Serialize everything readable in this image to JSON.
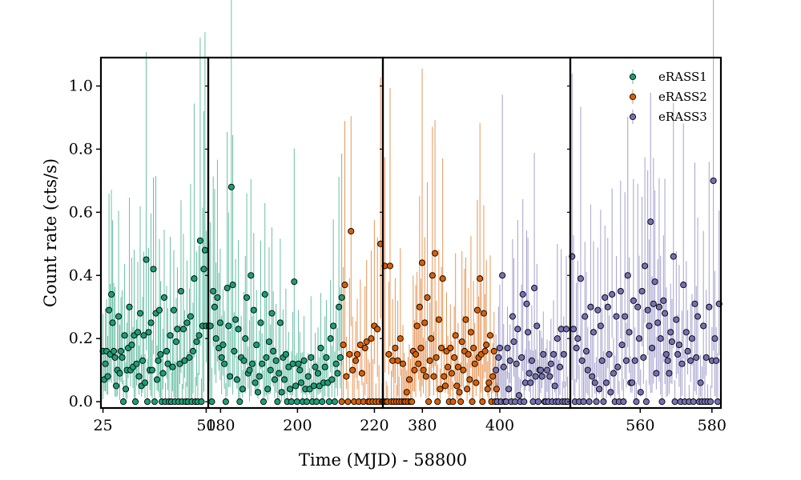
{
  "chart_data": {
    "type": "scatter",
    "xlabel": "Time (MJD) - 58800",
    "ylabel": "Count rate (cts/s)",
    "ylim": [
      -0.02,
      1.09
    ],
    "yticks": [
      "0.0",
      "0.2",
      "0.4",
      "0.6",
      "0.8",
      "1.0"
    ],
    "grid": false,
    "legend_position": "top-right",
    "series": [
      {
        "name": "eRASS1",
        "color": "#1b9e77",
        "marker": "circle"
      },
      {
        "name": "eRASS2",
        "color": "#d95f02",
        "marker": "circle"
      },
      {
        "name": "eRASS3",
        "color": "#7570b3",
        "marker": "circle"
      }
    ],
    "panels": [
      {
        "xlim": [
          24.5,
          50.5
        ],
        "xticks": [
          {
            "value": 25,
            "label": "25"
          },
          {
            "value": 50,
            "label": "50"
          }
        ],
        "segments": [
          {
            "series": 0,
            "x_start": 25.0,
            "x_end": 50.0,
            "y": [
              0.16,
              0.07,
              0.12,
              0.16,
              0.08,
              0.29,
              0.15,
              0.34,
              0.25,
              0.16,
              0.14,
              0.05,
              0.1,
              0.27,
              0.09,
              0.16,
              0.14,
              0.0,
              0.21,
              0.04,
              0.1,
              0.17,
              0.3,
              0.1,
              0.18,
              0.11,
              0.21,
              0.0,
              0.12,
              0.22,
              0.08,
              0.28,
              0.05,
              0.13,
              0.21,
              0.06,
              0.45,
              0.0,
              0.22,
              0.1,
              0.25,
              0.1,
              0.42,
              0.0,
              0.28,
              0.07,
              0.13,
              0.29,
              0.15,
              0.0,
              0.09,
              0.33,
              0.0,
              0.16,
              0.12,
              0.0,
              0.21,
              0.0,
              0.11,
              0.29,
              0.0,
              0.19,
              0.23,
              0.0,
              0.12,
              0.35,
              0.0,
              0.23,
              0.13,
              0.0,
              0.25,
              0.0,
              0.14,
              0.27,
              0.0,
              0.16,
              0.39,
              0.0,
              0.19,
              0.0,
              0.21,
              0.51,
              0.0,
              0.24,
              0.42,
              0.48,
              0.24
            ]
          }
        ]
      },
      {
        "xlim": [
          176.8,
          222.2
        ],
        "xticks": [
          {
            "value": 180,
            "label": "180"
          },
          {
            "value": 200,
            "label": "200"
          },
          {
            "value": 220,
            "label": "220"
          }
        ],
        "segments": [
          {
            "series": 0,
            "x_start": 177.0,
            "x_end": 211.5,
            "y": [
              0.24,
              0.24,
              0.0,
              0.35,
              0.3,
              0.2,
              0.33,
              0.17,
              0.25,
              0.14,
              0.18,
              0.12,
              0.0,
              0.36,
              0.24,
              0.08,
              0.68,
              0.37,
              0.16,
              0.26,
              0.07,
              0.23,
              0.0,
              0.14,
              0.04,
              0.13,
              0.2,
              0.33,
              0.09,
              0.1,
              0.4,
              0.12,
              0.29,
              0.06,
              0.18,
              0.03,
              0.08,
              0.25,
              0.12,
              0.0,
              0.34,
              0.14,
              0.04,
              0.19,
              0.1,
              0.28,
              0.16,
              0.07,
              0.13,
              0.0,
              0.09,
              0.25,
              0.03,
              0.14,
              0.07,
              0.15,
              0.0,
              0.11,
              0.04,
              0.0,
              0.12,
              0.38,
              0.05,
              0.0,
              0.12,
              0.1,
              0.06,
              0.0,
              0.13,
              0.04,
              0.0,
              0.08,
              0.04,
              0.14,
              0.0,
              0.05,
              0.11,
              0.0,
              0.09,
              0.05,
              0.17,
              0.0,
              0.06,
              0.11,
              0.14,
              0.06,
              0.0,
              0.2,
              0.07,
              0.24,
              0.0,
              0.12,
              0.09,
              0.3,
              0.14,
              0.33
            ]
          },
          {
            "series": 1,
            "x_start": 211.5,
            "x_end": 222.0,
            "y": [
              0.0,
              0.18,
              0.37,
              0.08,
              0.0,
              0.15,
              0.54,
              0.1,
              0.0,
              0.13,
              0.15,
              0.0,
              0.18,
              0.09,
              0.0,
              0.17,
              0.19,
              0.0,
              0.0,
              0.2,
              0.0,
              0.24,
              0.0,
              0.23,
              0.0,
              0.5,
              0.0
            ]
          }
        ]
      },
      {
        "xlim": [
          369.8,
          418.2
        ],
        "xticks": [
          {
            "value": 380,
            "label": "380"
          },
          {
            "value": 400,
            "label": "400"
          }
        ],
        "segments": [
          {
            "series": 1,
            "x_start": 370.0,
            "x_end": 399.5,
            "y": [
              0.0,
              0.43,
              0.0,
              0.0,
              0.15,
              0.43,
              0.0,
              0.13,
              0.0,
              0.17,
              0.0,
              0.13,
              0.0,
              0.2,
              0.0,
              0.12,
              0.0,
              0.0,
              0.03,
              0.0,
              0.07,
              0.0,
              0.0,
              0.16,
              0.1,
              0.15,
              0.24,
              0.12,
              0.3,
              0.17,
              0.44,
              0.1,
              0.25,
              0.08,
              0.33,
              0.0,
              0.13,
              0.2,
              0.4,
              0.08,
              0.47,
              0.14,
              0.0,
              0.26,
              0.04,
              0.17,
              0.39,
              0.08,
              0.05,
              0.16,
              0.11,
              0.0,
              0.17,
              0.09,
              0.0,
              0.14,
              0.21,
              0.05,
              0.11,
              0.03,
              0.0,
              0.19,
              0.1,
              0.16,
              0.26,
              0.04,
              0.15,
              0.07,
              0.22,
              0.0,
              0.17,
              0.12,
              0.06,
              0.29,
              0.14,
              0.39,
              0.15,
              0.0,
              0.28,
              0.16,
              0.18,
              0.04,
              0.06,
              0.21,
              0.0,
              0.08,
              0.16,
              0.0,
              0.04,
              0.0
            ]
          },
          {
            "series": 2,
            "x_start": 399.0,
            "x_end": 417.5,
            "y": [
              0.1,
              0.0,
              0.14,
              0.17,
              0.0,
              0.4,
              0.11,
              0.0,
              0.0,
              0.17,
              0.04,
              0.13,
              0.0,
              0.27,
              0.19,
              0.0,
              0.12,
              0.23,
              0.02,
              0.0,
              0.14,
              0.34,
              0.0,
              0.06,
              0.31,
              0.22,
              0.09,
              0.06,
              0.13,
              0.0,
              0.36,
              0.08,
              0.24,
              0.0,
              0.1,
              0.1,
              0.08,
              0.15,
              0.0,
              0.0,
              0.1,
              0.0,
              0.08,
              0.12,
              0.0,
              0.15,
              0.05,
              0.0,
              0.2,
              0.0,
              0.11,
              0.23,
              0.0,
              0.15,
              0.0,
              0.23,
              0.0
            ]
          }
        ]
      },
      {
        "xlim": [
          540.5,
          582.5
        ],
        "xticks": [
          {
            "value": 560,
            "label": "560"
          },
          {
            "value": 580,
            "label": "580"
          }
        ],
        "segments": [
          {
            "series": 2,
            "x_start": 541.0,
            "x_end": 582.0,
            "y": [
              0.46,
              0.23,
              0.0,
              0.17,
              0.2,
              0.0,
              0.39,
              0.13,
              0.0,
              0.27,
              0.16,
              0.1,
              0.0,
              0.3,
              0.08,
              0.22,
              0.06,
              0.0,
              0.29,
              0.04,
              0.24,
              0.13,
              0.0,
              0.33,
              0.06,
              0.3,
              0.15,
              0.03,
              0.34,
              0.09,
              0.0,
              0.27,
              0.11,
              0.0,
              0.35,
              0.18,
              0.0,
              0.27,
              0.13,
              0.4,
              0.22,
              0.06,
              0.06,
              0.32,
              0.13,
              0.0,
              0.3,
              0.2,
              0.03,
              0.35,
              0.14,
              0.43,
              0.0,
              0.29,
              0.24,
              0.57,
              0.17,
              0.31,
              0.38,
              0.09,
              0.25,
              0.3,
              0.2,
              0.0,
              0.32,
              0.28,
              0.15,
              0.13,
              0.09,
              0.22,
              0.19,
              0.46,
              0.0,
              0.26,
              0.15,
              0.18,
              0.0,
              0.12,
              0.37,
              0.0,
              0.22,
              0.16,
              0.0,
              0.13,
              0.2,
              0.0,
              0.31,
              0.14,
              0.27,
              0.0,
              0.06,
              0.0,
              0.24,
              0.0,
              0.14,
              0.0,
              0.3,
              0.0,
              0.13,
              0.7,
              0.2,
              0.13,
              0.0,
              0.31
            ]
          }
        ]
      }
    ]
  }
}
